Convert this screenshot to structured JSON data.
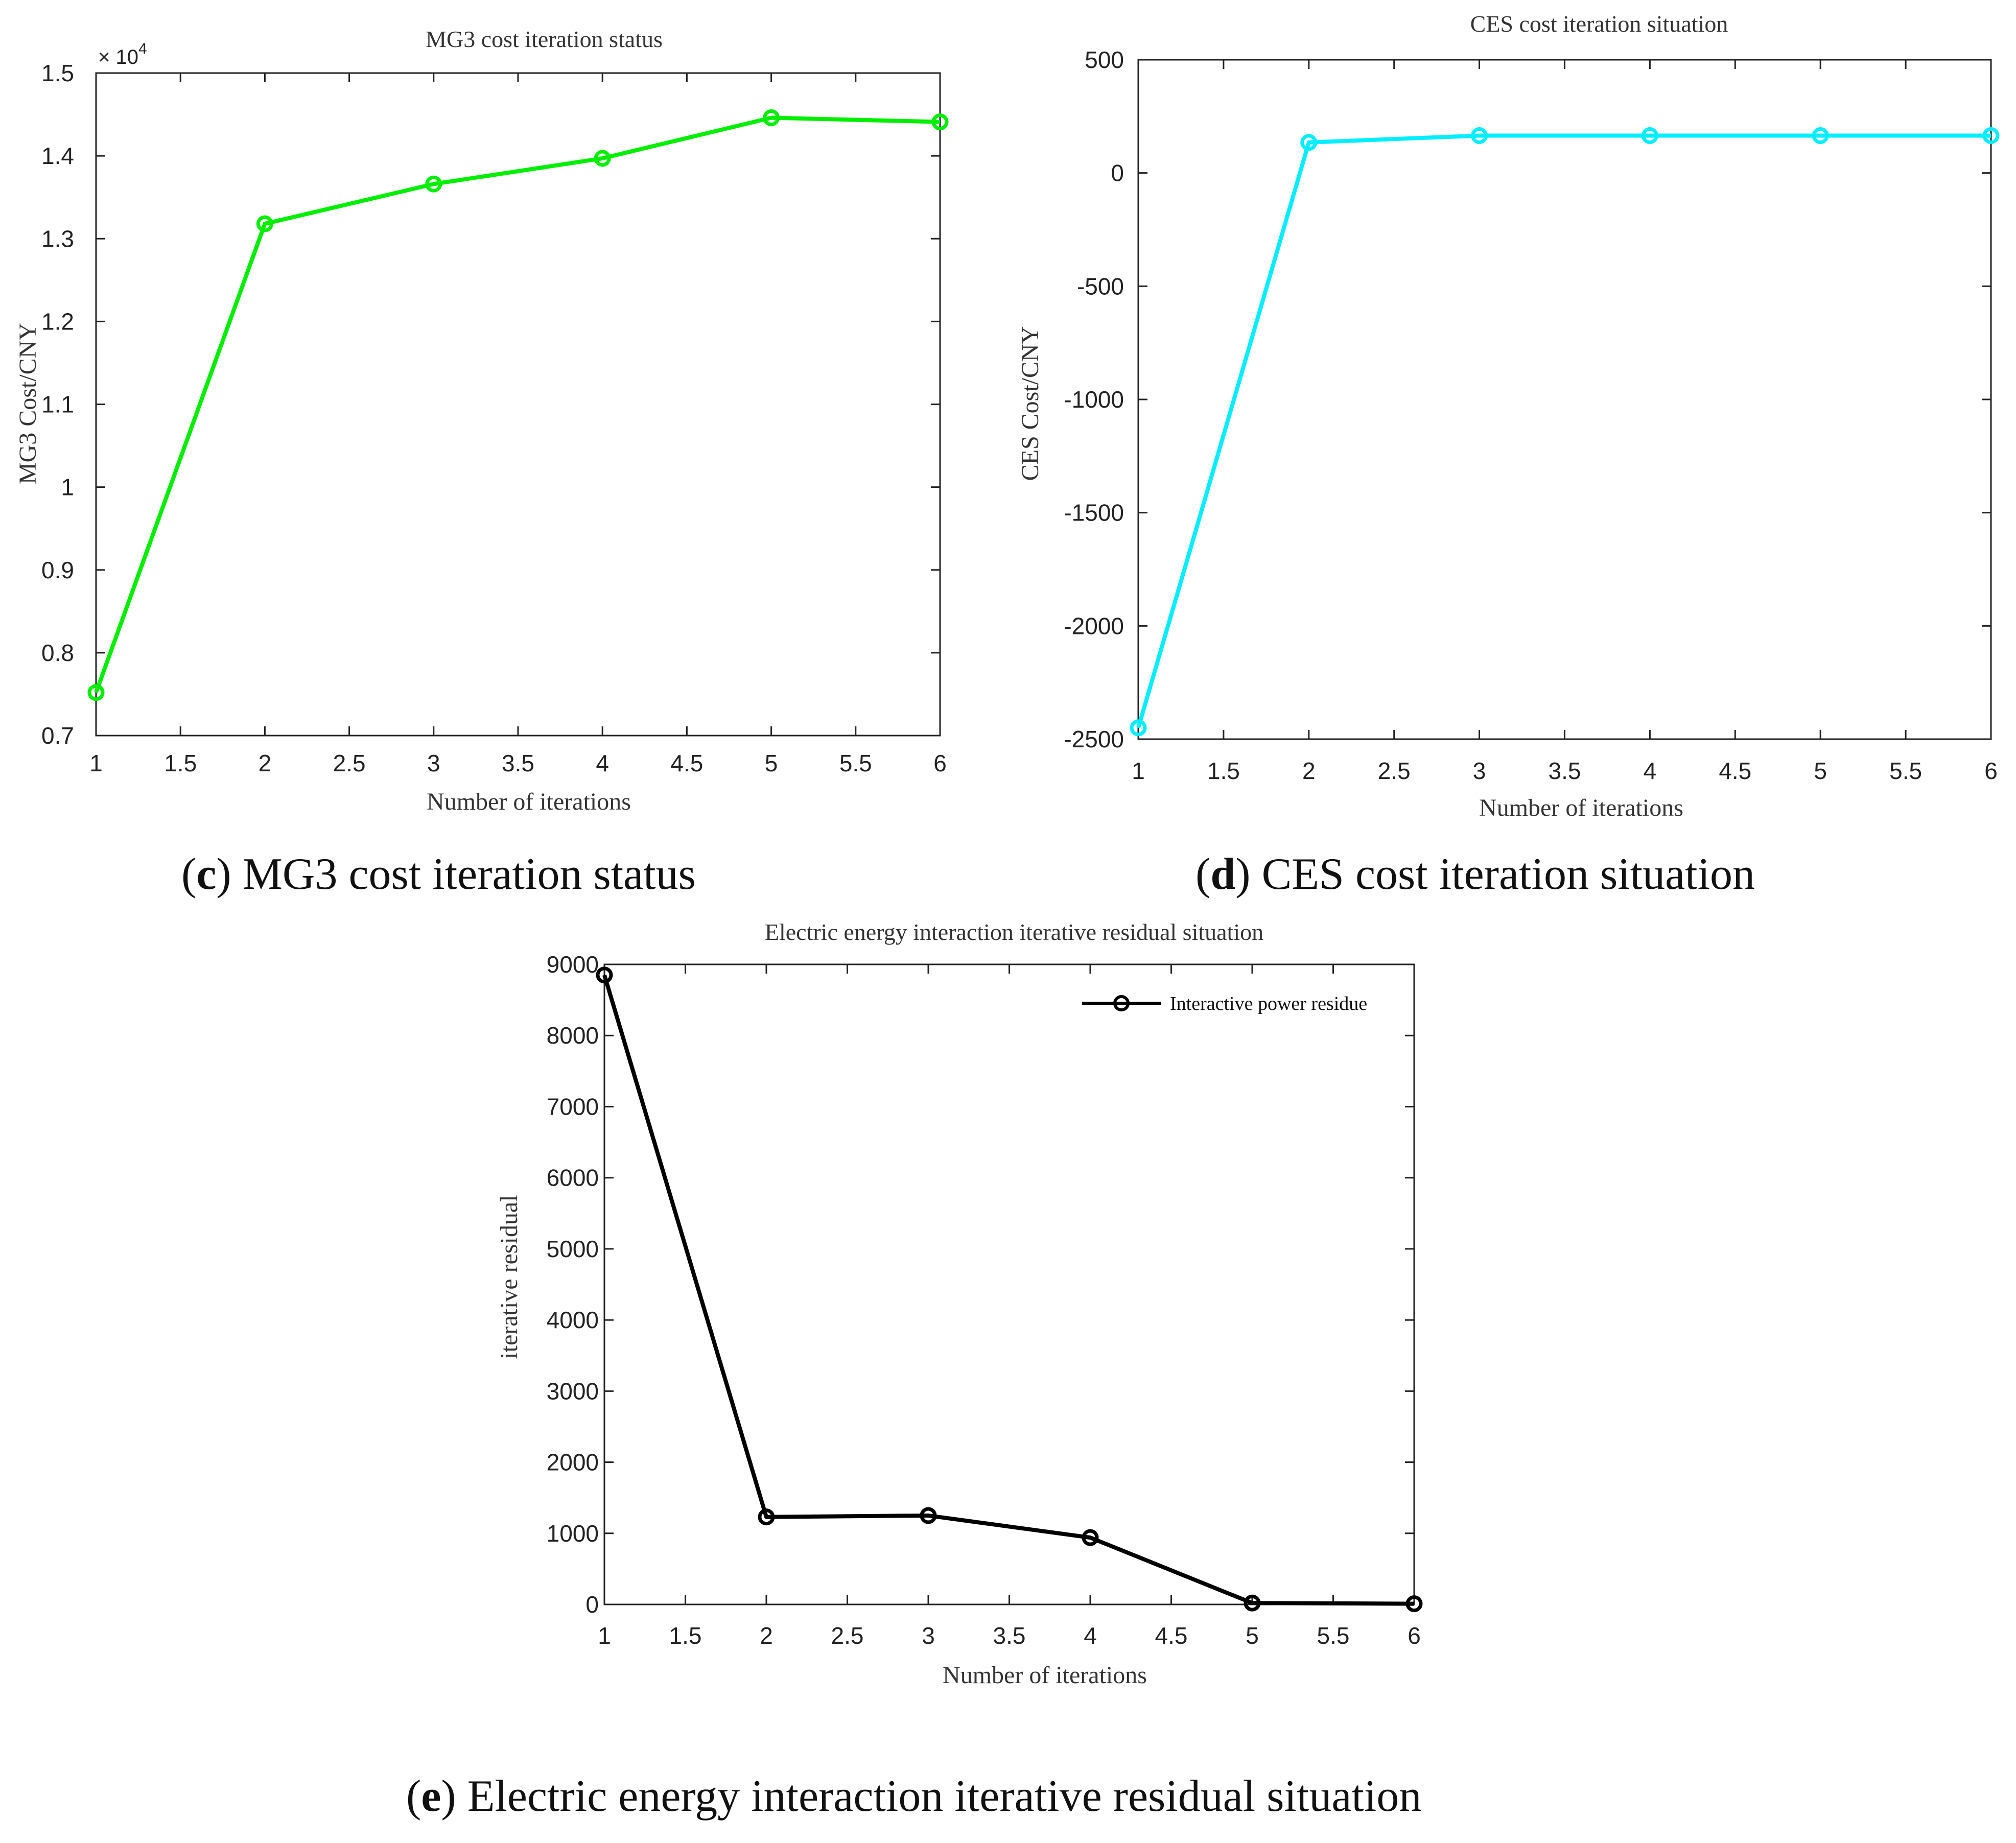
{
  "chart_data": [
    {
      "id": "mg3",
      "type": "line",
      "title": "MG3 cost iteration status",
      "xlabel": "Number of iterations",
      "ylabel": "MG3 Cost/CNY",
      "exponent_label": "× 10",
      "exponent_power": "4",
      "x": [
        1,
        2,
        3,
        4,
        5,
        6
      ],
      "series": [
        {
          "name": "MG3 cost",
          "color": "#00ee00",
          "values": [
            0.752,
            1.318,
            1.366,
            1.397,
            1.446,
            1.441
          ]
        }
      ],
      "xlim": [
        1,
        6
      ],
      "ylim": [
        0.7,
        1.5
      ],
      "xticks": [
        1,
        1.5,
        2,
        2.5,
        3,
        3.5,
        4,
        4.5,
        5,
        5.5,
        6
      ],
      "xtick_labels": [
        "1",
        "1.5",
        "2",
        "2.5",
        "3",
        "3.5",
        "4",
        "4.5",
        "5",
        "5.5",
        "6"
      ],
      "yticks": [
        0.7,
        0.8,
        0.9,
        1,
        1.1,
        1.2,
        1.3,
        1.4,
        1.5
      ],
      "ytick_labels": [
        "0.7",
        "0.8",
        "0.9",
        "1",
        "1.1",
        "1.2",
        "1.3",
        "1.4",
        "1.5"
      ],
      "grid": false,
      "legend": null,
      "caption_letter": "c",
      "caption_text": "MG3 cost iteration status"
    },
    {
      "id": "ces",
      "type": "line",
      "title": "CES cost iteration situation",
      "xlabel": "Number of iterations",
      "ylabel": "CES Cost/CNY",
      "x": [
        1,
        2,
        3,
        4,
        5,
        6
      ],
      "series": [
        {
          "name": "CES cost",
          "color": "#00eeff",
          "values": [
            -2450,
            135,
            165,
            165,
            165,
            165
          ]
        }
      ],
      "xlim": [
        1,
        6
      ],
      "ylim": [
        -2500,
        500
      ],
      "xticks": [
        1,
        1.5,
        2,
        2.5,
        3,
        3.5,
        4,
        4.5,
        5,
        5.5,
        6
      ],
      "xtick_labels": [
        "1",
        "1.5",
        "2",
        "2.5",
        "3",
        "3.5",
        "4",
        "4.5",
        "5",
        "5.5",
        "6"
      ],
      "yticks": [
        -2500,
        -2000,
        -1500,
        -1000,
        -500,
        0,
        500
      ],
      "ytick_labels": [
        "-2500",
        "-2000",
        "-1500",
        "-1000",
        "-500",
        "0",
        "500"
      ],
      "grid": false,
      "legend": null,
      "caption_letter": "d",
      "caption_text": "CES cost iteration situation"
    },
    {
      "id": "residual",
      "type": "line",
      "title": "Electric energy interaction iterative residual situation",
      "xlabel": "Number of iterations",
      "ylabel": "iterative residual",
      "x": [
        1,
        2,
        3,
        4,
        5,
        6
      ],
      "series": [
        {
          "name": "Interactive power residue",
          "color": "#000000",
          "values": [
            8850,
            1230,
            1250,
            940,
            20,
            10
          ]
        }
      ],
      "xlim": [
        1,
        6
      ],
      "ylim": [
        0,
        9000
      ],
      "xticks": [
        1,
        1.5,
        2,
        2.5,
        3,
        3.5,
        4,
        4.5,
        5,
        5.5,
        6
      ],
      "xtick_labels": [
        "1",
        "1.5",
        "2",
        "2.5",
        "3",
        "3.5",
        "4",
        "4.5",
        "5",
        "5.5",
        "6"
      ],
      "yticks": [
        0,
        1000,
        2000,
        3000,
        4000,
        5000,
        6000,
        7000,
        8000,
        9000
      ],
      "ytick_labels": [
        "0",
        "1000",
        "2000",
        "3000",
        "4000",
        "5000",
        "6000",
        "7000",
        "8000",
        "9000"
      ],
      "grid": false,
      "legend": "top-right",
      "caption_letter": "e",
      "caption_text": "Electric energy interaction iterative residual situation"
    }
  ]
}
